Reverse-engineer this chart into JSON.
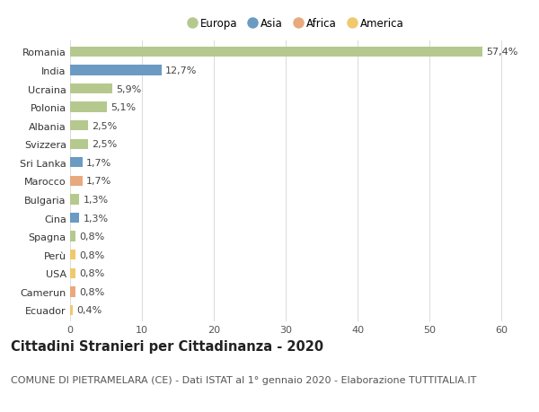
{
  "countries": [
    "Romania",
    "India",
    "Ucraina",
    "Polonia",
    "Albania",
    "Svizzera",
    "Sri Lanka",
    "Marocco",
    "Bulgaria",
    "Cina",
    "Spagna",
    "Perù",
    "USA",
    "Camerun",
    "Ecuador"
  ],
  "values": [
    57.4,
    12.7,
    5.9,
    5.1,
    2.5,
    2.5,
    1.7,
    1.7,
    1.3,
    1.3,
    0.8,
    0.8,
    0.8,
    0.8,
    0.4
  ],
  "labels": [
    "57,4%",
    "12,7%",
    "5,9%",
    "5,1%",
    "2,5%",
    "2,5%",
    "1,7%",
    "1,7%",
    "1,3%",
    "1,3%",
    "0,8%",
    "0,8%",
    "0,8%",
    "0,8%",
    "0,4%"
  ],
  "continents": [
    "Europa",
    "Asia",
    "Europa",
    "Europa",
    "Europa",
    "Europa",
    "Asia",
    "Africa",
    "Europa",
    "Asia",
    "Europa",
    "America",
    "America",
    "Africa",
    "America"
  ],
  "continent_colors": {
    "Europa": "#b5c98e",
    "Asia": "#6b9bc3",
    "Africa": "#e8a97e",
    "America": "#f0c96e"
  },
  "legend_order": [
    "Europa",
    "Asia",
    "Africa",
    "America"
  ],
  "title": "Cittadini Stranieri per Cittadinanza - 2020",
  "subtitle": "COMUNE DI PIETRAMELARA (CE) - Dati ISTAT al 1° gennaio 2020 - Elaborazione TUTTITALIA.IT",
  "xlim": [
    0,
    63
  ],
  "xticks": [
    0,
    10,
    20,
    30,
    40,
    50,
    60
  ],
  "background_color": "#ffffff",
  "grid_color": "#dddddd",
  "bar_height": 0.55,
  "title_fontsize": 10.5,
  "subtitle_fontsize": 8,
  "label_fontsize": 8,
  "tick_fontsize": 8,
  "legend_fontsize": 8.5
}
